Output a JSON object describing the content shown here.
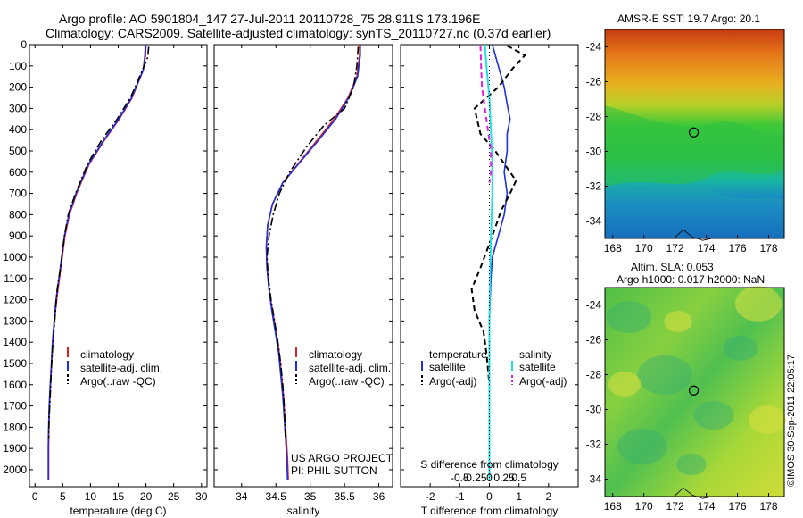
{
  "title": {
    "line1": "Argo profile: AO 5901804_147 27-Jul-2011 20110728_75 28.911S 173.196E",
    "line2": "Climatology: CARS2009. Satellite-adjusted climatology: synTS_20110727.nc (0.37d earlier)"
  },
  "credit": "©IMOS 30-Sep-2011 22:05:17",
  "panels": [
    {
      "xlabel": "temperature (deg C)",
      "xlim": [
        -1,
        31
      ],
      "xticks": [
        0,
        5,
        10,
        15,
        20,
        25,
        30
      ],
      "xtick_labels": [
        "0",
        "5",
        "10",
        "15",
        "20",
        "25",
        "30"
      ],
      "legend": [
        "climatology",
        "satellite-adj. clim.",
        "Argo(..raw -QC)"
      ]
    },
    {
      "xlabel": "salinity",
      "xlim": [
        33.6,
        36.2
      ],
      "xticks": [
        34,
        34.5,
        35,
        35.5,
        36
      ],
      "xtick_labels": [
        "34",
        "34.5",
        "35",
        "35.5",
        "36"
      ],
      "legend": [
        "climatology",
        "satellite-adj. clim.",
        "Argo(..raw -QC)"
      ],
      "annotation": [
        "US ARGO PROJECT",
        "PI: PHIL SUTTON"
      ]
    },
    {
      "xlabel": "T difference from climatology",
      "xlabel_top": "S difference from climatology",
      "xlim": [
        -3,
        3
      ],
      "xticks": [
        -2,
        -1,
        0,
        1,
        2
      ],
      "xtick_labels": [
        "-2",
        "-1",
        "0",
        "1",
        "2"
      ],
      "sticks": [
        "-0.5",
        "-0.25",
        "0",
        "0.25",
        "0.5"
      ],
      "legend_temperature": [
        "temperature",
        "satellite",
        "Argo(-adj)"
      ],
      "legend_salinity": [
        "salinity",
        "satellite",
        "Argo(-adj)"
      ]
    }
  ],
  "yaxis": {
    "ylim": [
      0,
      2080
    ],
    "ticks": [
      0,
      100,
      200,
      300,
      400,
      500,
      600,
      700,
      800,
      900,
      1000,
      1100,
      1200,
      1300,
      1400,
      1500,
      1600,
      1700,
      1800,
      1900,
      2000
    ],
    "tick_labels": [
      "0",
      "100",
      "200",
      "300",
      "400",
      "500",
      "600",
      "700",
      "800",
      "900",
      "1000",
      "1100",
      "1200",
      "1300",
      "1400",
      "1500",
      "1600",
      "1700",
      "1800",
      "1900",
      "2000"
    ]
  },
  "maps": [
    {
      "title": "AMSR-E SST: 19.7 Argo: 20.1",
      "title2": "",
      "lon_range": [
        167.5,
        179
      ],
      "lat_range": [
        -35,
        -23
      ],
      "xticks": [
        "168",
        "170",
        "172",
        "174",
        "176",
        "178"
      ],
      "yticks": [
        "-24",
        "-26",
        "-28",
        "-30",
        "-32",
        "-34"
      ]
    },
    {
      "title": "Altim. SLA: 0.053",
      "title2": "Argo h1000: 0.017 h2000: NaN",
      "lon_range": [
        167.5,
        179
      ],
      "lat_range": [
        -35,
        -23
      ],
      "xticks": [
        "168",
        "170",
        "172",
        "174",
        "176",
        "178"
      ],
      "yticks": [
        "-24",
        "-26",
        "-28",
        "-30",
        "-32",
        "-34"
      ]
    }
  ],
  "argo_position": {
    "lon": 173.196,
    "lat": -28.911
  },
  "colors": {
    "climatology": "#e0201c",
    "satellite": "#1f2ee0",
    "argo": "#000000",
    "sal_satellite": "#22e0e0",
    "sal_argo": "#e020e0"
  },
  "chart_data": [
    {
      "type": "line",
      "title": "",
      "xlabel": "temperature (deg C)",
      "ylabel": "",
      "x_range": [
        -1,
        31
      ],
      "y_range": [
        0,
        2080
      ],
      "y_inverted": true,
      "series": [
        {
          "name": "climatology",
          "color": "#e0201c",
          "x": [
            19.9,
            19.8,
            19.5,
            17.5,
            15.2,
            12.5,
            9.8,
            8.3,
            7.5,
            6.2,
            5.4,
            4.9,
            4.4,
            3.9,
            3.5,
            3.2,
            3.0,
            2.8,
            2.6,
            2.5,
            2.45,
            2.45
          ],
          "y": [
            0,
            50,
            120,
            250,
            350,
            450,
            560,
            650,
            700,
            800,
            900,
            1000,
            1100,
            1200,
            1300,
            1400,
            1500,
            1600,
            1700,
            1800,
            1900,
            2050
          ]
        },
        {
          "name": "satellite-adj. clim.",
          "color": "#1f2ee0",
          "x": [
            20.0,
            19.9,
            19.5,
            17.4,
            15.1,
            12.4,
            9.7,
            8.2,
            7.4,
            6.1,
            5.3,
            4.8,
            4.3,
            3.8,
            3.45,
            3.15,
            2.95,
            2.75,
            2.55,
            2.45,
            2.4,
            2.4
          ],
          "y": [
            0,
            50,
            120,
            250,
            350,
            450,
            560,
            650,
            700,
            800,
            900,
            1000,
            1100,
            1200,
            1300,
            1400,
            1500,
            1600,
            1700,
            1800,
            1900,
            2050
          ]
        },
        {
          "name": "Argo(..raw -QC)",
          "color": "#000000",
          "x": [
            20.5,
            20.3,
            19.2,
            17.2,
            14.8,
            12.0,
            9.5,
            8.1,
            7.3,
            6.0,
            5.3,
            4.6,
            4.0,
            3.7,
            3.4,
            3.1,
            2.9,
            2.75,
            2.55,
            2.45
          ],
          "y": [
            10,
            60,
            130,
            250,
            350,
            450,
            560,
            650,
            700,
            800,
            900,
            1050,
            1150,
            1250,
            1350,
            1450,
            1550,
            1650,
            1750,
            1850
          ]
        }
      ]
    },
    {
      "type": "line",
      "title": "",
      "xlabel": "salinity",
      "ylabel": "",
      "x_range": [
        33.6,
        36.2
      ],
      "y_range": [
        0,
        2080
      ],
      "y_inverted": true,
      "series": [
        {
          "name": "climatology",
          "color": "#e0201c",
          "x": [
            35.72,
            35.72,
            35.68,
            35.55,
            35.35,
            35.1,
            34.85,
            34.6,
            34.45,
            34.38,
            34.36,
            34.37,
            34.4,
            34.45,
            34.5,
            34.55,
            34.58,
            34.61,
            34.63,
            34.65,
            34.67,
            34.68
          ],
          "y": [
            0,
            50,
            150,
            250,
            350,
            450,
            550,
            650,
            750,
            850,
            950,
            1050,
            1150,
            1250,
            1350,
            1450,
            1550,
            1650,
            1750,
            1850,
            1950,
            2050
          ]
        },
        {
          "name": "satellite-adj. clim.",
          "color": "#1f2ee0",
          "x": [
            35.73,
            35.73,
            35.69,
            35.56,
            35.37,
            35.12,
            34.86,
            34.6,
            34.45,
            34.38,
            34.36,
            34.37,
            34.4,
            34.44,
            34.49,
            34.54,
            34.57,
            34.6,
            34.62,
            34.64,
            34.66,
            34.67
          ],
          "y": [
            0,
            50,
            150,
            250,
            350,
            450,
            550,
            650,
            750,
            850,
            950,
            1050,
            1150,
            1250,
            1350,
            1450,
            1550,
            1650,
            1750,
            1850,
            1950,
            2050
          ]
        },
        {
          "name": "Argo(..raw -QC)",
          "color": "#000000",
          "x": [
            35.7,
            35.68,
            35.63,
            35.5,
            35.2,
            34.95,
            34.7,
            34.55,
            34.46,
            34.4,
            34.37,
            34.39,
            34.43,
            34.48,
            34.53,
            34.57,
            34.6,
            34.62,
            34.64
          ],
          "y": [
            10,
            100,
            200,
            300,
            380,
            480,
            600,
            700,
            800,
            900,
            1000,
            1100,
            1200,
            1300,
            1400,
            1500,
            1600,
            1700,
            1850
          ]
        }
      ]
    },
    {
      "type": "line",
      "title": "",
      "xlabel": "T difference from climatology",
      "ylabel": "",
      "x_range": [
        -3,
        3
      ],
      "y_range": [
        0,
        2080
      ],
      "y_inverted": true,
      "series": [
        {
          "name": "satellite",
          "color": "#1f2ee0",
          "x": [
            0.1,
            0.3,
            0.5,
            0.6,
            0.7,
            0.6,
            0.6,
            0.5,
            0.6,
            0.5,
            0.3,
            0.1,
            0.05,
            0.0,
            0.0,
            0.0,
            0.0,
            0.0
          ],
          "y": [
            0,
            100,
            200,
            280,
            350,
            420,
            500,
            600,
            700,
            800,
            900,
            1000,
            1100,
            1300,
            1500,
            1700,
            1900,
            2050
          ]
        },
        {
          "name": "Argo(-adj)",
          "color": "#000000",
          "x": [
            0.6,
            1.2,
            0.8,
            0.3,
            -0.5,
            -0.3,
            0.2,
            0.5,
            0.9,
            0.7,
            0.4,
            0.1,
            -0.3,
            -0.6,
            -0.5,
            -0.2,
            -0.1,
            0.0
          ],
          "y": [
            5,
            50,
            110,
            200,
            300,
            420,
            500,
            560,
            640,
            700,
            780,
            900,
            1050,
            1150,
            1250,
            1350,
            1450,
            1600
          ]
        },
        {
          "name": "salinity satellite",
          "color": "#22e0e0",
          "x": [
            -0.15,
            -0.1,
            0.0,
            0.05,
            0.1,
            0.1,
            0.05,
            0.02,
            0.0,
            0.0,
            0.0,
            0.0
          ],
          "y": [
            0,
            100,
            250,
            400,
            550,
            700,
            900,
            1100,
            1300,
            1500,
            1800,
            2050
          ]
        },
        {
          "name": "salinity Argo(-adj)",
          "color": "#e020e0",
          "x": [
            -0.3,
            -0.28,
            -0.25,
            -0.15,
            -0.05,
            0.05,
            0.05,
            0.0
          ],
          "y": [
            5,
            100,
            200,
            300,
            400,
            500,
            600,
            650
          ]
        }
      ]
    }
  ]
}
